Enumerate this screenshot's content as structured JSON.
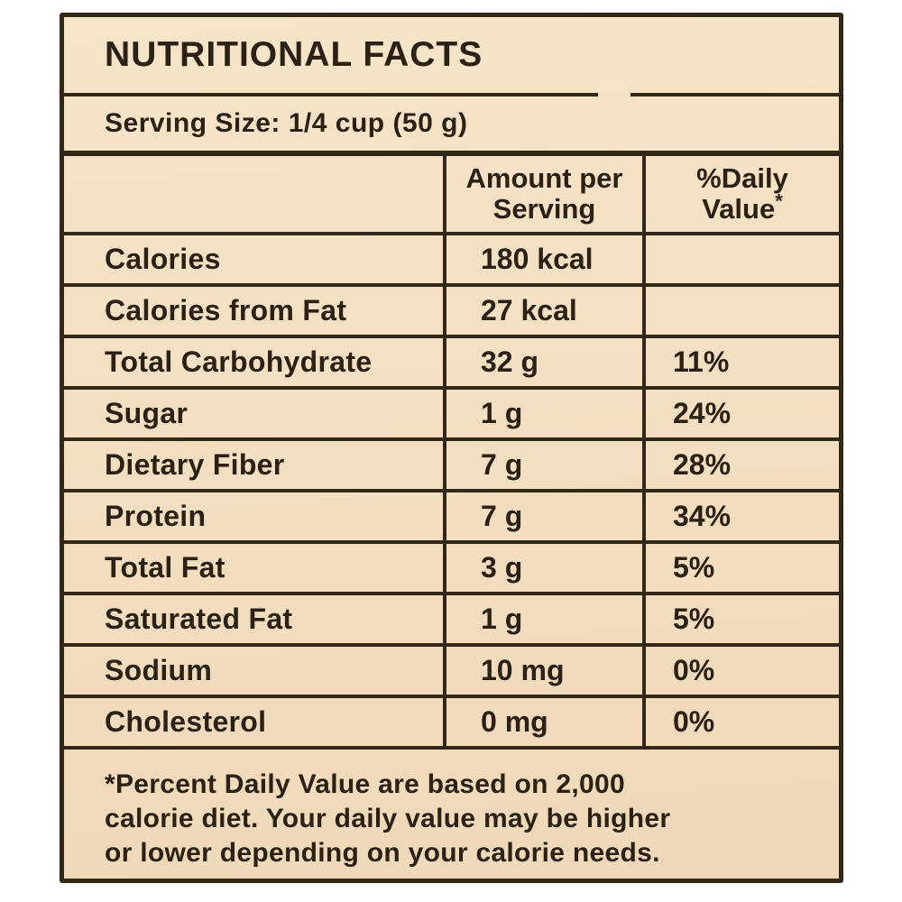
{
  "label": {
    "title": "NUTRITIONAL FACTS",
    "serving_size": "Serving Size: 1/4 cup (50 g)",
    "header": {
      "amount_line1": "Amount per",
      "amount_line2": "Serving",
      "daily_value_line1": "%Daily",
      "daily_value_line2": "Value",
      "daily_value_mark": "*"
    },
    "rows": [
      {
        "nutrient": "Calories",
        "amount": "180 kcal",
        "daily_value": ""
      },
      {
        "nutrient": "Calories from Fat",
        "amount": "27 kcal",
        "daily_value": ""
      },
      {
        "nutrient": "Total Carbohydrate",
        "amount": "32 g",
        "daily_value": "11%"
      },
      {
        "nutrient": "Sugar",
        "amount": "1 g",
        "daily_value": "24%"
      },
      {
        "nutrient": "Dietary Fiber",
        "amount": "7 g",
        "daily_value": "28%"
      },
      {
        "nutrient": "Protein",
        "amount": "7 g",
        "daily_value": "34%"
      },
      {
        "nutrient": "Total Fat",
        "amount": "3 g",
        "daily_value": "5%"
      },
      {
        "nutrient": "Saturated Fat",
        "amount": "1 g",
        "daily_value": "5%"
      },
      {
        "nutrient": "Sodium",
        "amount": "10 mg",
        "daily_value": "0%"
      },
      {
        "nutrient": "Cholesterol",
        "amount": "0 mg",
        "daily_value": "0%"
      }
    ],
    "footnote_lines": [
      "*Percent Daily Value are based on 2,000",
      "calorie diet. Your daily value may be higher",
      "or lower depending on your calorie needs."
    ],
    "colors": {
      "label_background": "#f3dfc1",
      "border": "#332818",
      "text": "#2b2114",
      "page_background": "#ffffff"
    }
  }
}
